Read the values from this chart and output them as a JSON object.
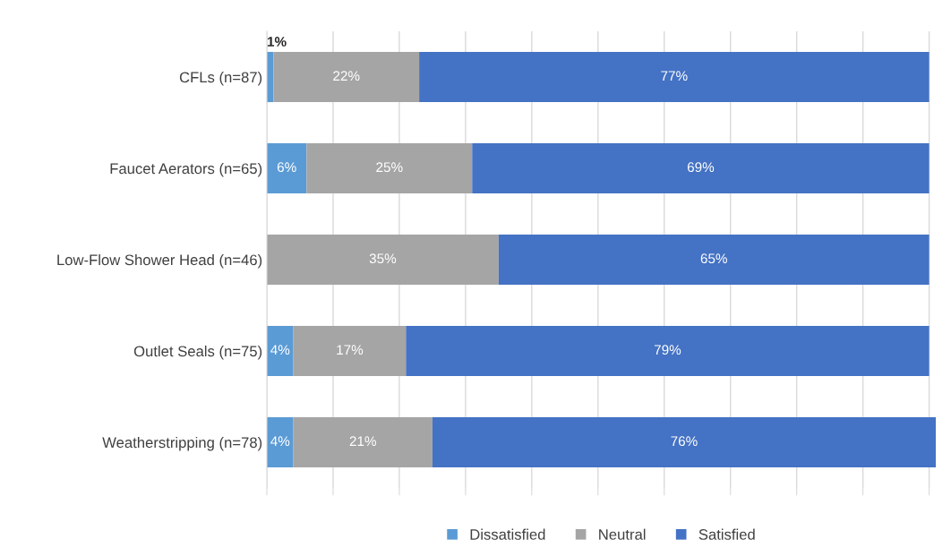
{
  "chart_data": {
    "type": "bar",
    "orientation": "horizontal",
    "stacked": true,
    "categories": [
      "CFLs (n=87)",
      "Faucet Aerators (n=65)",
      "Low-Flow Shower Head (n=46)",
      "Outlet Seals (n=75)",
      "Weatherstripping (n=78)"
    ],
    "series": [
      {
        "name": "Dissatisfied",
        "color": "#5b9bd5",
        "values": [
          1,
          6,
          null,
          4,
          4
        ],
        "value_labels": [
          "1%",
          "6%",
          null,
          "4%",
          "4%"
        ]
      },
      {
        "name": "Neutral",
        "color": "#a5a5a5",
        "values": [
          22,
          25,
          35,
          17,
          21
        ],
        "value_labels": [
          "22%",
          "25%",
          "35%",
          "17%",
          "21%"
        ]
      },
      {
        "name": "Satisfied",
        "color": "#4472c4",
        "values": [
          77,
          69,
          65,
          79,
          76
        ],
        "value_labels": [
          "77%",
          "69%",
          "65%",
          "79%",
          "76%"
        ]
      }
    ],
    "xlim": [
      0,
      101
    ],
    "xticks": [
      {
        "value": 0,
        "label": null
      },
      {
        "value": 10,
        "label": null
      },
      {
        "value": 20,
        "label": null
      },
      {
        "value": 30,
        "label": null
      },
      {
        "value": 40,
        "label": null
      },
      {
        "value": 50,
        "label": null
      },
      {
        "value": 60,
        "label": null
      },
      {
        "value": 70,
        "label": null
      },
      {
        "value": 80,
        "label": null
      },
      {
        "value": 90,
        "label": null
      },
      {
        "value": 100,
        "label": null
      }
    ],
    "tick_labels": "y",
    "grid": "x",
    "legend": "bottom"
  }
}
